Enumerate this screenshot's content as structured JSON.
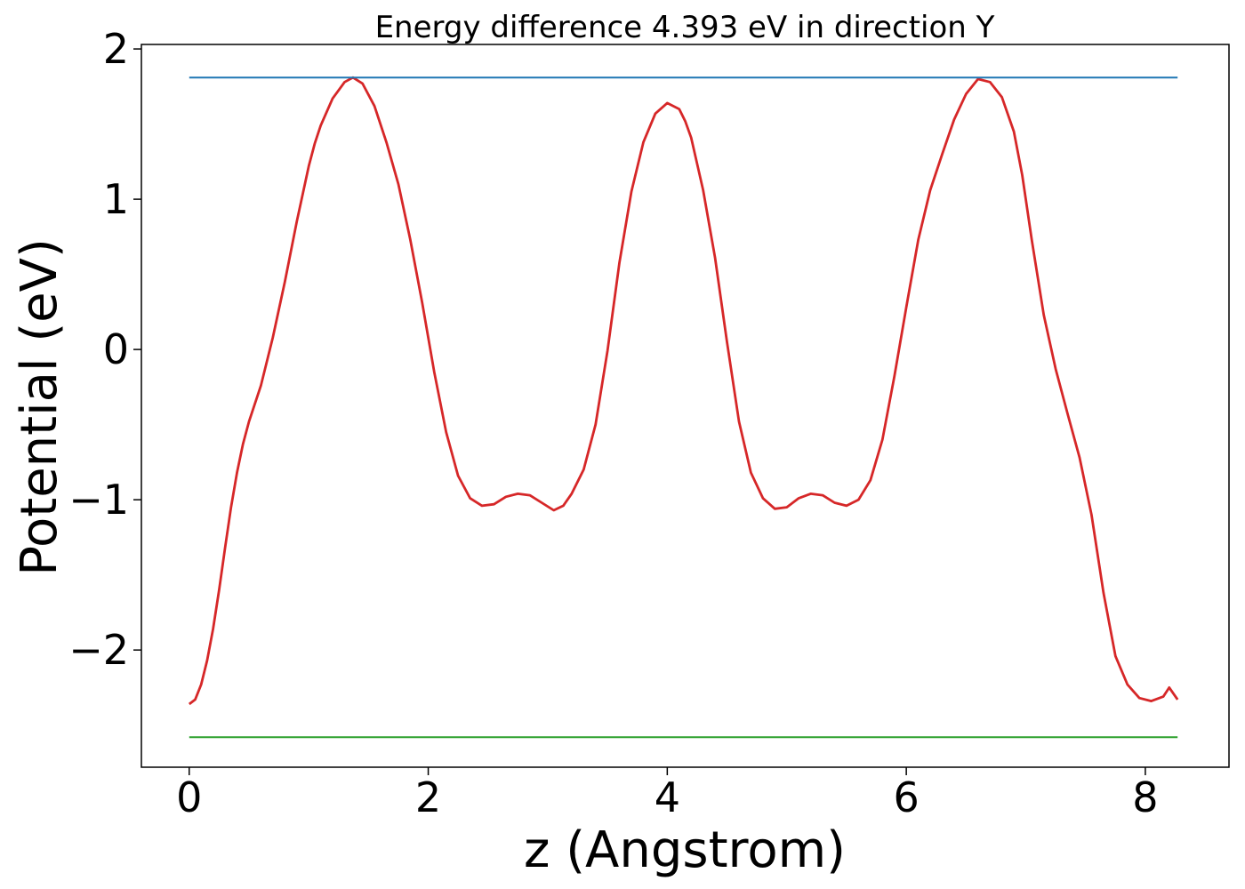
{
  "chart_data": {
    "type": "line",
    "title": "Energy difference 4.393 eV in direction Y",
    "xlabel": "z (Angstrom)",
    "ylabel": "Potential (eV)",
    "xlim": [
      -0.4,
      8.7
    ],
    "ylim": [
      -2.78,
      2.03
    ],
    "xticks": [
      0,
      2,
      4,
      6,
      8
    ],
    "xtick_labels": [
      "0",
      "2",
      "4",
      "6",
      "8"
    ],
    "yticks": [
      -2,
      -1,
      0,
      1,
      2
    ],
    "ytick_labels": [
      "−2",
      "−1",
      "0",
      "1",
      "2"
    ],
    "grid": false,
    "series": [
      {
        "color": "#d62728",
        "x": [
          0.0,
          0.05,
          0.1,
          0.15,
          0.2,
          0.25,
          0.3,
          0.35,
          0.4,
          0.45,
          0.5,
          0.6,
          0.7,
          0.8,
          0.9,
          1.0,
          1.05,
          1.1,
          1.2,
          1.3,
          1.37,
          1.45,
          1.55,
          1.65,
          1.75,
          1.85,
          1.95,
          2.05,
          2.15,
          2.25,
          2.35,
          2.45,
          2.55,
          2.65,
          2.75,
          2.85,
          2.95,
          3.05,
          3.13,
          3.2,
          3.3,
          3.4,
          3.5,
          3.6,
          3.7,
          3.8,
          3.9,
          4.0,
          4.1,
          4.15,
          4.2,
          4.3,
          4.4,
          4.5,
          4.6,
          4.7,
          4.8,
          4.9,
          5.0,
          5.1,
          5.2,
          5.3,
          5.4,
          5.5,
          5.6,
          5.7,
          5.8,
          5.9,
          6.0,
          6.1,
          6.2,
          6.3,
          6.4,
          6.5,
          6.6,
          6.7,
          6.8,
          6.9,
          6.97,
          7.05,
          7.15,
          7.25,
          7.35,
          7.45,
          7.55,
          7.65,
          7.75,
          7.85,
          7.95,
          8.05,
          8.15,
          8.2,
          8.27
        ],
        "y": [
          -2.36,
          -2.33,
          -2.23,
          -2.07,
          -1.86,
          -1.6,
          -1.32,
          -1.05,
          -0.82,
          -0.63,
          -0.48,
          -0.24,
          0.08,
          0.45,
          0.85,
          1.22,
          1.37,
          1.49,
          1.67,
          1.78,
          1.81,
          1.77,
          1.62,
          1.38,
          1.1,
          0.73,
          0.31,
          -0.15,
          -0.55,
          -0.84,
          -0.99,
          -1.04,
          -1.03,
          -0.98,
          -0.96,
          -0.97,
          -1.02,
          -1.07,
          -1.04,
          -0.96,
          -0.8,
          -0.5,
          -0.01,
          0.58,
          1.05,
          1.38,
          1.57,
          1.64,
          1.6,
          1.52,
          1.41,
          1.06,
          0.61,
          0.05,
          -0.48,
          -0.82,
          -0.99,
          -1.06,
          -1.05,
          -0.99,
          -0.96,
          -0.97,
          -1.02,
          -1.04,
          -1.0,
          -0.87,
          -0.6,
          -0.18,
          0.28,
          0.73,
          1.06,
          1.3,
          1.53,
          1.7,
          1.8,
          1.78,
          1.68,
          1.45,
          1.16,
          0.73,
          0.23,
          -0.13,
          -0.43,
          -0.72,
          -1.1,
          -1.62,
          -2.04,
          -2.23,
          -2.32,
          -2.34,
          -2.31,
          -2.25,
          -2.33
        ]
      },
      {
        "color": "#1f77b4",
        "x": [
          0.0,
          8.27
        ],
        "y": [
          1.81,
          1.81
        ]
      },
      {
        "color": "#2ca02c",
        "x": [
          0.0,
          8.27
        ],
        "y": [
          -2.58,
          -2.58
        ]
      }
    ]
  }
}
